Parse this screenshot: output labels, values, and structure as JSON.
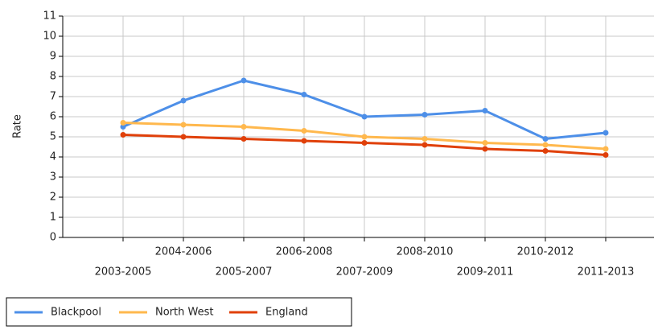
{
  "chart_data": {
    "type": "line",
    "y_label": "Rate",
    "categories": [
      "2003-2005",
      "2004-2006",
      "2005-2007",
      "2006-2008",
      "2007-2009",
      "2008-2010",
      "2009-2011",
      "2010-2012",
      "2011-2013"
    ],
    "series": [
      {
        "name": "Blackpool",
        "color": "#4d8fe8",
        "values": [
          5.5,
          6.8,
          7.8,
          7.1,
          6.0,
          6.1,
          6.3,
          4.9,
          5.2
        ]
      },
      {
        "name": "North West",
        "color": "#ffb84d",
        "values": [
          5.7,
          5.6,
          5.5,
          5.3,
          5.0,
          4.9,
          4.7,
          4.6,
          4.4
        ]
      },
      {
        "name": "England",
        "color": "#e0400a",
        "values": [
          5.1,
          5.0,
          4.9,
          4.8,
          4.7,
          4.6,
          4.4,
          4.3,
          4.1
        ]
      }
    ],
    "ylim": [
      0,
      11
    ],
    "yticks": [
      0,
      1,
      2,
      3,
      4,
      5,
      6,
      7,
      8,
      9,
      10,
      11
    ],
    "grid": true,
    "legend": "bottom-left"
  }
}
